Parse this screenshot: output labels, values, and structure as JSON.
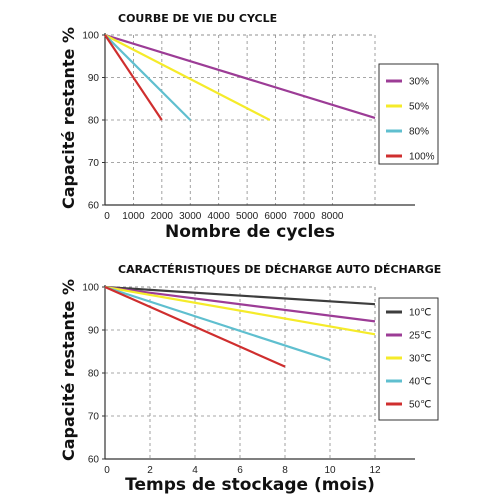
{
  "chart_data": [
    {
      "type": "line",
      "title": "COURBE DE VIE DU CYCLE",
      "xlabel": "Nombre de cycles",
      "ylabel": "Capacité restante %",
      "xlim": [
        0,
        9500
      ],
      "ylim": [
        60,
        100
      ],
      "x_ticks": [
        "0",
        "1000",
        "2000",
        "3000",
        "4000",
        "5000",
        "6000",
        "7000",
        "8000"
      ],
      "x_tick_values": [
        0,
        1000,
        2000,
        3000,
        4000,
        5000,
        6000,
        7000,
        8000
      ],
      "y_ticks": [
        "60",
        "70",
        "80",
        "90",
        "100"
      ],
      "y_tick_values": [
        60,
        70,
        80,
        90,
        100
      ],
      "grid": true,
      "legend_position": "right",
      "series": [
        {
          "name": "30%",
          "color": "#9c3c96",
          "x": [
            0,
            9500
          ],
          "y": [
            100,
            80.5
          ]
        },
        {
          "name": "50%",
          "color": "#f5eb2a",
          "x": [
            0,
            5800
          ],
          "y": [
            100,
            80
          ]
        },
        {
          "name": "80%",
          "color": "#5fbfcf",
          "x": [
            0,
            3000
          ],
          "y": [
            100,
            80
          ]
        },
        {
          "name": "100%",
          "color": "#cf2e2e",
          "x": [
            0,
            2000
          ],
          "y": [
            100,
            80
          ]
        }
      ]
    },
    {
      "type": "line",
      "title": "CARACTÉRISTIQUES DE DÉCHARGE AUTO DÉCHARGE",
      "xlabel": "Temps de stockage (mois)",
      "ylabel": "Capacité restante %",
      "xlim": [
        0,
        12
      ],
      "ylim": [
        60,
        100
      ],
      "x_ticks": [
        "0",
        "2",
        "4",
        "6",
        "8",
        "10",
        "12"
      ],
      "x_tick_values": [
        0,
        2,
        4,
        6,
        8,
        10,
        12
      ],
      "y_ticks": [
        "60",
        "70",
        "80",
        "90",
        "100"
      ],
      "y_tick_values": [
        60,
        70,
        80,
        90,
        100
      ],
      "grid": true,
      "legend_position": "right",
      "series": [
        {
          "name": "10℃",
          "color": "#3d3d3d",
          "x": [
            0,
            12
          ],
          "y": [
            100,
            96
          ]
        },
        {
          "name": "25℃",
          "color": "#9c3c96",
          "x": [
            0,
            12
          ],
          "y": [
            100,
            92
          ]
        },
        {
          "name": "30℃",
          "color": "#f5eb2a",
          "x": [
            0,
            12
          ],
          "y": [
            100,
            89
          ]
        },
        {
          "name": "40℃",
          "color": "#5fbfcf",
          "x": [
            0,
            10
          ],
          "y": [
            100,
            83
          ]
        },
        {
          "name": "50℃",
          "color": "#cf2e2e",
          "x": [
            0,
            8
          ],
          "y": [
            100,
            81.5
          ]
        }
      ]
    }
  ]
}
